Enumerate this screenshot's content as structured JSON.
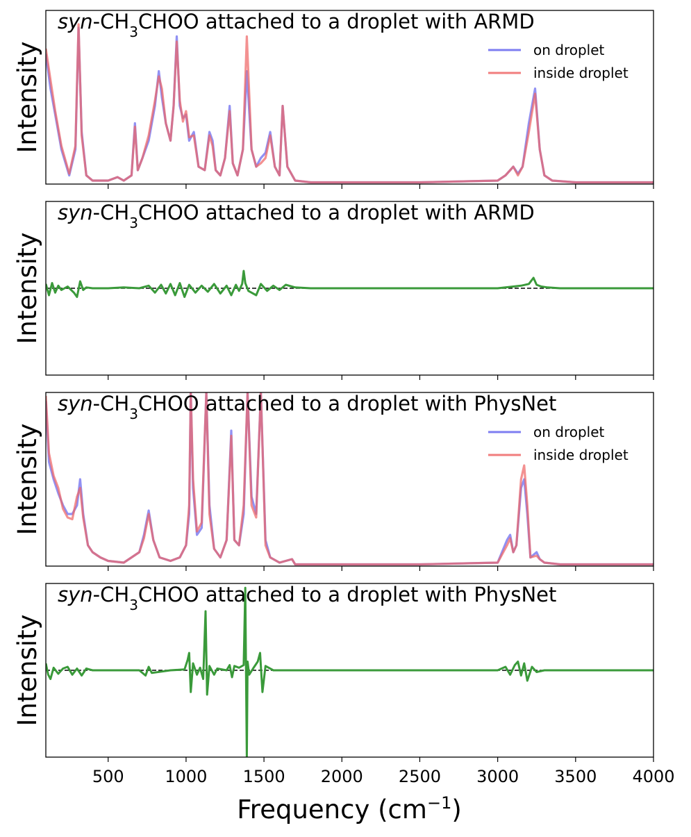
{
  "figure": {
    "xlabel_main": "Frequency (cm",
    "xlabel_sup": "−1",
    "xlabel_end": ")"
  },
  "colors": {
    "on_droplet": "#6666ee",
    "inside_droplet": "#ee6666",
    "difference": "#3a9a3a"
  },
  "chart_data": [
    {
      "type": "line",
      "title_italic": "syn",
      "title_rest": "-CH",
      "title_sub": "3",
      "title_end": "CHOO attached to a droplet with ARMD",
      "ylabel": "Intensity",
      "xlim": [
        100,
        4000
      ],
      "ylim": [
        0,
        1
      ],
      "xticks": [
        500,
        1000,
        1500,
        2000,
        2500,
        3000,
        3500,
        4000
      ],
      "xtick_labels_visible": false,
      "legend": "top-right",
      "series": [
        {
          "name": "on droplet",
          "color": "#6666ee",
          "x": [
            100,
            130,
            160,
            200,
            250,
            290,
            310,
            330,
            360,
            400,
            500,
            560,
            600,
            650,
            672,
            690,
            720,
            760,
            800,
            825,
            845,
            870,
            900,
            920,
            940,
            960,
            980,
            1000,
            1020,
            1050,
            1080,
            1120,
            1150,
            1170,
            1190,
            1220,
            1250,
            1280,
            1300,
            1330,
            1365,
            1390,
            1420,
            1450,
            1480,
            1510,
            1540,
            1570,
            1600,
            1620,
            1650,
            1700,
            1800,
            2000,
            2500,
            3000,
            3050,
            3100,
            3130,
            3160,
            3200,
            3240,
            3270,
            3300,
            3350,
            3500,
            4000
          ],
          "y": [
            0.75,
            0.55,
            0.4,
            0.2,
            0.05,
            0.2,
            0.9,
            0.3,
            0.05,
            0.02,
            0.02,
            0.04,
            0.02,
            0.05,
            0.35,
            0.08,
            0.15,
            0.25,
            0.45,
            0.65,
            0.5,
            0.35,
            0.25,
            0.45,
            0.85,
            0.45,
            0.38,
            0.4,
            0.25,
            0.3,
            0.1,
            0.08,
            0.3,
            0.25,
            0.08,
            0.05,
            0.15,
            0.45,
            0.12,
            0.05,
            0.2,
            0.65,
            0.2,
            0.1,
            0.15,
            0.18,
            0.3,
            0.1,
            0.05,
            0.45,
            0.1,
            0.02,
            0.01,
            0.01,
            0.01,
            0.02,
            0.05,
            0.1,
            0.06,
            0.1,
            0.35,
            0.55,
            0.2,
            0.05,
            0.02,
            0.01,
            0.01
          ]
        },
        {
          "name": "inside droplet",
          "color": "#ee6666",
          "x": [
            100,
            130,
            160,
            200,
            250,
            290,
            310,
            330,
            360,
            400,
            500,
            560,
            600,
            650,
            672,
            690,
            720,
            760,
            800,
            825,
            845,
            870,
            900,
            920,
            940,
            960,
            980,
            1000,
            1020,
            1050,
            1080,
            1120,
            1150,
            1170,
            1190,
            1220,
            1250,
            1280,
            1300,
            1330,
            1365,
            1390,
            1420,
            1450,
            1480,
            1510,
            1540,
            1570,
            1600,
            1620,
            1650,
            1700,
            1800,
            2000,
            2500,
            3000,
            3050,
            3100,
            3130,
            3160,
            3200,
            3240,
            3270,
            3300,
            3350,
            3500,
            4000
          ],
          "y": [
            0.78,
            0.6,
            0.42,
            0.22,
            0.06,
            0.22,
            0.92,
            0.28,
            0.05,
            0.02,
            0.02,
            0.04,
            0.02,
            0.05,
            0.33,
            0.08,
            0.15,
            0.28,
            0.48,
            0.62,
            0.55,
            0.35,
            0.25,
            0.45,
            0.82,
            0.48,
            0.36,
            0.42,
            0.27,
            0.28,
            0.1,
            0.08,
            0.28,
            0.22,
            0.08,
            0.05,
            0.15,
            0.42,
            0.12,
            0.05,
            0.2,
            0.85,
            0.2,
            0.1,
            0.12,
            0.15,
            0.28,
            0.1,
            0.05,
            0.45,
            0.1,
            0.02,
            0.01,
            0.01,
            0.01,
            0.02,
            0.05,
            0.1,
            0.05,
            0.1,
            0.3,
            0.52,
            0.2,
            0.05,
            0.02,
            0.01,
            0.01
          ]
        }
      ]
    },
    {
      "type": "line",
      "title_italic": "syn",
      "title_rest": "-CH",
      "title_sub": "3",
      "title_end": "CHOO attached to a droplet with ARMD",
      "ylabel": "Intensity",
      "xlim": [
        100,
        4000
      ],
      "ylim": [
        -1,
        1
      ],
      "zero_line": true,
      "xticks": [
        500,
        1000,
        1500,
        2000,
        2500,
        3000,
        3500,
        4000
      ],
      "xtick_labels_visible": false,
      "series": [
        {
          "color": "#3a9a3a",
          "x": [
            100,
            120,
            140,
            160,
            180,
            200,
            240,
            280,
            300,
            320,
            340,
            360,
            400,
            500,
            600,
            700,
            760,
            800,
            840,
            870,
            900,
            930,
            960,
            990,
            1020,
            1060,
            1100,
            1140,
            1180,
            1220,
            1260,
            1290,
            1320,
            1340,
            1360,
            1370,
            1380,
            1400,
            1420,
            1450,
            1480,
            1520,
            1560,
            1600,
            1640,
            1700,
            1800,
            2000,
            2500,
            3000,
            3100,
            3150,
            3200,
            3230,
            3250,
            3280,
            3320,
            3400,
            3600,
            4000
          ],
          "y": [
            0.05,
            -0.08,
            0.06,
            -0.05,
            0.03,
            -0.02,
            0.02,
            -0.05,
            -0.1,
            0.08,
            -0.02,
            0.01,
            0.0,
            0.0,
            0.01,
            0.0,
            0.03,
            -0.05,
            0.04,
            -0.06,
            0.05,
            -0.08,
            0.06,
            -0.1,
            0.04,
            -0.05,
            0.03,
            -0.04,
            0.05,
            -0.06,
            0.03,
            -0.08,
            0.04,
            -0.03,
            0.05,
            0.2,
            0.06,
            -0.03,
            -0.05,
            -0.08,
            0.05,
            -0.03,
            0.03,
            -0.02,
            0.04,
            0.01,
            0.0,
            0.0,
            0.0,
            0.0,
            0.02,
            0.03,
            0.05,
            0.12,
            0.04,
            0.02,
            0.01,
            0.0,
            0.0,
            0.0
          ]
        }
      ]
    },
    {
      "type": "line",
      "title_italic": "syn",
      "title_rest": "-CH",
      "title_sub": "3",
      "title_end": "CHOO attached to a droplet with PhysNet",
      "ylabel": "Intensity",
      "xlim": [
        100,
        4000
      ],
      "ylim": [
        0,
        1
      ],
      "xticks": [
        500,
        1000,
        1500,
        2000,
        2500,
        3000,
        3500,
        4000
      ],
      "xtick_labels_visible": false,
      "legend": "top-right",
      "series": [
        {
          "name": "on droplet",
          "color": "#6666ee",
          "x": [
            100,
            120,
            150,
            180,
            210,
            240,
            270,
            300,
            320,
            340,
            370,
            400,
            450,
            500,
            600,
            700,
            730,
            760,
            790,
            830,
            900,
            960,
            1000,
            1020,
            1030,
            1045,
            1070,
            1100,
            1130,
            1150,
            1180,
            1220,
            1260,
            1290,
            1310,
            1340,
            1370,
            1395,
            1420,
            1450,
            1480,
            1510,
            1540,
            1600,
            1680,
            1700,
            1800,
            2000,
            2500,
            3000,
            3060,
            3080,
            3100,
            3120,
            3150,
            3170,
            3190,
            3210,
            3250,
            3270,
            3300,
            3400,
            4000
          ],
          "y": [
            0.95,
            0.6,
            0.5,
            0.42,
            0.35,
            0.3,
            0.3,
            0.35,
            0.5,
            0.3,
            0.12,
            0.08,
            0.05,
            0.03,
            0.02,
            0.08,
            0.18,
            0.32,
            0.15,
            0.05,
            0.03,
            0.05,
            0.12,
            0.3,
            1.0,
            0.45,
            0.18,
            0.22,
            1.0,
            0.35,
            0.1,
            0.05,
            0.15,
            0.78,
            0.15,
            0.12,
            0.3,
            1.0,
            0.4,
            0.3,
            1.0,
            0.15,
            0.05,
            0.02,
            0.04,
            0.01,
            0.01,
            0.01,
            0.01,
            0.02,
            0.15,
            0.18,
            0.08,
            0.12,
            0.45,
            0.5,
            0.3,
            0.05,
            0.08,
            0.04,
            0.02,
            0.01,
            0.01
          ]
        },
        {
          "name": "inside droplet",
          "color": "#ee6666",
          "x": [
            100,
            120,
            150,
            180,
            210,
            240,
            270,
            300,
            320,
            340,
            370,
            400,
            450,
            500,
            600,
            700,
            730,
            760,
            790,
            830,
            900,
            960,
            1000,
            1020,
            1030,
            1045,
            1070,
            1100,
            1130,
            1150,
            1180,
            1220,
            1260,
            1290,
            1310,
            1340,
            1370,
            1395,
            1420,
            1450,
            1480,
            1510,
            1540,
            1600,
            1680,
            1700,
            1800,
            2000,
            2500,
            3000,
            3060,
            3080,
            3100,
            3120,
            3150,
            3170,
            3190,
            3210,
            3250,
            3270,
            3300,
            3400,
            4000
          ],
          "y": [
            0.98,
            0.65,
            0.52,
            0.45,
            0.33,
            0.28,
            0.27,
            0.4,
            0.45,
            0.28,
            0.12,
            0.08,
            0.05,
            0.03,
            0.02,
            0.08,
            0.16,
            0.3,
            0.15,
            0.05,
            0.03,
            0.05,
            0.12,
            0.35,
            1.0,
            0.5,
            0.2,
            0.25,
            1.0,
            0.3,
            0.1,
            0.05,
            0.15,
            0.75,
            0.15,
            0.12,
            0.35,
            1.0,
            0.35,
            0.28,
            1.0,
            0.12,
            0.05,
            0.02,
            0.04,
            0.01,
            0.01,
            0.01,
            0.01,
            0.02,
            0.12,
            0.16,
            0.08,
            0.12,
            0.5,
            0.58,
            0.35,
            0.05,
            0.06,
            0.04,
            0.02,
            0.01,
            0.01
          ]
        }
      ]
    },
    {
      "type": "line",
      "title_italic": "syn",
      "title_rest": "-CH",
      "title_sub": "3",
      "title_end": "CHOO attached to a droplet with PhysNet",
      "ylabel": "Intensity",
      "xlabel": "Frequency (cm−1)",
      "xlim": [
        100,
        4000
      ],
      "ylim": [
        -1,
        1
      ],
      "zero_line": true,
      "xticks": [
        500,
        1000,
        1500,
        2000,
        2500,
        3000,
        3500,
        4000
      ],
      "xtick_labels": [
        "500",
        "1000",
        "1500",
        "2000",
        "2500",
        "3000",
        "3500",
        "4000"
      ],
      "xtick_labels_visible": true,
      "series": [
        {
          "color": "#3a9a3a",
          "x": [
            100,
            115,
            130,
            150,
            180,
            210,
            240,
            270,
            300,
            330,
            360,
            400,
            500,
            700,
            740,
            760,
            780,
            900,
            990,
            1010,
            1020,
            1030,
            1045,
            1070,
            1090,
            1110,
            1125,
            1135,
            1150,
            1180,
            1200,
            1260,
            1280,
            1295,
            1310,
            1340,
            1370,
            1380,
            1385,
            1390,
            1395,
            1405,
            1430,
            1460,
            1475,
            1490,
            1510,
            1560,
            1600,
            1700,
            2000,
            2500,
            3000,
            3050,
            3080,
            3110,
            3130,
            3150,
            3170,
            3190,
            3220,
            3250,
            3300,
            3400,
            4000
          ],
          "y": [
            0.08,
            -0.05,
            -0.1,
            0.03,
            -0.04,
            0.02,
            0.04,
            -0.05,
            0.02,
            -0.06,
            0.02,
            0.0,
            0.0,
            0.0,
            -0.06,
            0.04,
            -0.03,
            0.0,
            0.01,
            0.12,
            0.2,
            -0.25,
            0.08,
            -0.05,
            0.03,
            -0.1,
            0.68,
            -0.28,
            0.05,
            -0.05,
            0.02,
            0.0,
            0.06,
            -0.08,
            0.05,
            0.03,
            0.06,
            0.95,
            -0.05,
            -1.0,
            0.1,
            -0.05,
            0.02,
            0.1,
            0.2,
            -0.25,
            0.05,
            0.0,
            0.0,
            0.0,
            0.0,
            0.0,
            0.0,
            0.04,
            -0.05,
            0.06,
            0.1,
            -0.06,
            0.08,
            -0.12,
            0.04,
            -0.02,
            0.0,
            0.0,
            0.0
          ]
        }
      ]
    }
  ]
}
